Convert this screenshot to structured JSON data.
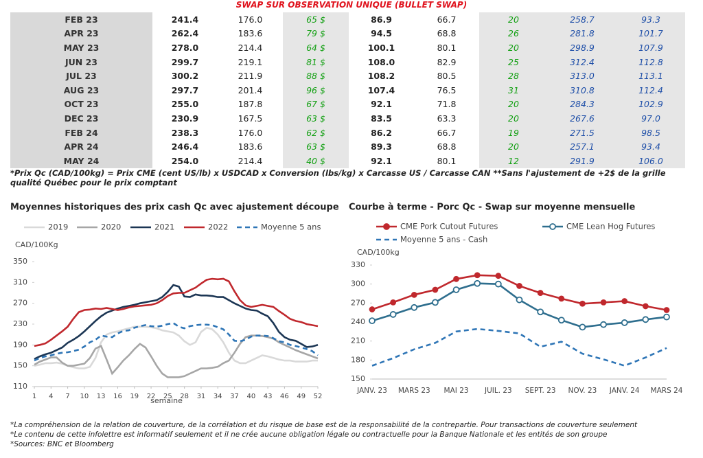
{
  "header": {
    "title": "SWAP SUR OBSERVATION UNIQUE (BULLET SWAP)"
  },
  "table": {
    "rows": [
      [
        "FEB 23",
        "241.4",
        "176.0",
        "65 $",
        "86.9",
        "66.7",
        "20",
        "258.7",
        "93.3"
      ],
      [
        "APR 23",
        "262.4",
        "183.6",
        "79 $",
        "94.5",
        "68.8",
        "26",
        "281.8",
        "101.7"
      ],
      [
        "MAY 23",
        "278.0",
        "214.4",
        "64 $",
        "100.1",
        "80.1",
        "20",
        "298.9",
        "107.9"
      ],
      [
        "JUN 23",
        "299.7",
        "219.1",
        "81 $",
        "108.0",
        "82.9",
        "25",
        "312.4",
        "112.8"
      ],
      [
        "JUL 23",
        "300.2",
        "211.9",
        "88 $",
        "108.2",
        "80.5",
        "28",
        "313.0",
        "113.1"
      ],
      [
        "AUG 23",
        "297.7",
        "201.4",
        "96 $",
        "107.4",
        "76.5",
        "31",
        "310.8",
        "112.4"
      ],
      [
        "OCT 23",
        "255.0",
        "187.8",
        "67 $",
        "92.1",
        "71.8",
        "20",
        "284.3",
        "102.9"
      ],
      [
        "DEC 23",
        "230.9",
        "167.5",
        "63 $",
        "83.5",
        "63.3",
        "20",
        "267.6",
        "97.0"
      ],
      [
        "FEB 24",
        "238.3",
        "176.0",
        "62 $",
        "86.2",
        "66.7",
        "19",
        "271.5",
        "98.5"
      ],
      [
        "APR 24",
        "246.4",
        "183.6",
        "63 $",
        "89.3",
        "68.8",
        "20",
        "257.1",
        "93.4"
      ],
      [
        "MAY 24",
        "254.0",
        "214.4",
        "40 $",
        "92.1",
        "80.1",
        "12",
        "291.9",
        "106.0"
      ]
    ]
  },
  "footnote": "*Prix Qc (CAD/100kg) = Prix CME (cent US/lb) x USDCAD x Conversion (lbs/kg) x Carcasse US / Carcasse CAN **Sans l'ajustement de +2$ de la grille qualité Québec pour le prix comptant",
  "chart_data": [
    {
      "type": "line",
      "title": "Moyennes historiques des prix cash Qc avec ajustement découpe",
      "ylabel": "CAD/100Kg",
      "xlabel": "semaine",
      "x": [
        1,
        2,
        3,
        4,
        5,
        6,
        7,
        8,
        9,
        10,
        11,
        12,
        13,
        14,
        15,
        16,
        17,
        18,
        19,
        20,
        21,
        22,
        23,
        24,
        25,
        26,
        27,
        28,
        29,
        30,
        31,
        32,
        33,
        34,
        35,
        36,
        37,
        38,
        39,
        40,
        41,
        42,
        43,
        44,
        45,
        46,
        47,
        48,
        49,
        50,
        51,
        52
      ],
      "xlim": [
        1,
        52
      ],
      "xticks": [
        1,
        4,
        7,
        10,
        13,
        16,
        19,
        22,
        25,
        28,
        31,
        34,
        37,
        40,
        43,
        46,
        49,
        52
      ],
      "ylim": [
        110,
        350
      ],
      "yticks": [
        110,
        150,
        190,
        230,
        270,
        310,
        350
      ],
      "series": [
        {
          "name": "2019",
          "color": "#d9d9d9",
          "style": "solid",
          "values": [
            150,
            152,
            155,
            155,
            156,
            154,
            150,
            147,
            145,
            145,
            148,
            165,
            195,
            210,
            214,
            216,
            219,
            222,
            225,
            225,
            225,
            224,
            222,
            218,
            216,
            214,
            208,
            197,
            190,
            195,
            215,
            223,
            220,
            210,
            195,
            175,
            160,
            155,
            155,
            160,
            165,
            170,
            168,
            165,
            162,
            160,
            160,
            158,
            158,
            158,
            160,
            160
          ]
        },
        {
          "name": "2020",
          "color": "#a6a6a6",
          "style": "solid",
          "values": [
            152,
            158,
            162,
            166,
            166,
            156,
            150,
            150,
            152,
            154,
            165,
            183,
            188,
            162,
            135,
            147,
            160,
            170,
            182,
            192,
            185,
            168,
            150,
            135,
            128,
            128,
            128,
            130,
            135,
            140,
            145,
            145,
            146,
            148,
            155,
            160,
            175,
            192,
            205,
            208,
            208,
            207,
            205,
            202,
            195,
            190,
            185,
            180,
            176,
            172,
            168,
            164
          ]
        },
        {
          "name": "2021",
          "color": "#1c3654",
          "style": "solid",
          "values": [
            163,
            168,
            172,
            175,
            180,
            185,
            194,
            200,
            207,
            216,
            226,
            236,
            245,
            252,
            256,
            260,
            263,
            265,
            267,
            270,
            272,
            274,
            276,
            282,
            292,
            305,
            302,
            283,
            282,
            287,
            285,
            285,
            284,
            282,
            282,
            276,
            270,
            265,
            260,
            257,
            256,
            250,
            245,
            232,
            215,
            205,
            200,
            198,
            192,
            186,
            187,
            190
          ]
        },
        {
          "name": "2022",
          "color": "#c0282d",
          "style": "solid",
          "values": [
            188,
            190,
            193,
            200,
            208,
            216,
            225,
            240,
            253,
            257,
            258,
            260,
            259,
            261,
            259,
            257,
            259,
            262,
            264,
            265,
            266,
            267,
            270,
            276,
            284,
            289,
            290,
            290,
            295,
            300,
            308,
            315,
            317,
            316,
            317,
            312,
            293,
            276,
            266,
            263,
            265,
            267,
            265,
            263,
            255,
            248,
            240,
            236,
            234,
            230,
            228,
            226
          ]
        },
        {
          "name": "Moyenne 5 ans",
          "color": "#2e75b6",
          "style": "dashed",
          "values": [
            160,
            165,
            168,
            170,
            173,
            175,
            176,
            178,
            181,
            187,
            195,
            200,
            208,
            206,
            205,
            212,
            217,
            218,
            223,
            226,
            228,
            226,
            225,
            227,
            230,
            232,
            225,
            222,
            226,
            228,
            229,
            229,
            228,
            224,
            220,
            210,
            198,
            197,
            200,
            206,
            208,
            208,
            207,
            203,
            197,
            195,
            190,
            188,
            185,
            182,
            178,
            170
          ]
        }
      ]
    },
    {
      "type": "line",
      "title": "Courbe à terme - Porc Qc - Swap sur moyenne mensuelle",
      "ylabel": "CAD/100kg",
      "categories": [
        "JANV. 23",
        null,
        "MARS 23",
        null,
        "MAI 23",
        null,
        "JUIL. 23",
        null,
        "SEPT. 23",
        null,
        "NOV. 23",
        null,
        "JANV. 24",
        null,
        "MARS 24"
      ],
      "ylim": [
        150,
        330
      ],
      "yticks": [
        150,
        180,
        210,
        240,
        270,
        300,
        330
      ],
      "series": [
        {
          "name": "CME Pork Cutout Futures",
          "color": "#c0282d",
          "style": "solid",
          "marker": "filled",
          "values": [
            260,
            271,
            283,
            291,
            308,
            314,
            313,
            297,
            286,
            277,
            269,
            271,
            273,
            265,
            259
          ]
        },
        {
          "name": "CME Lean Hog Futures",
          "color": "#2e6e8e",
          "style": "solid",
          "marker": "open",
          "values": [
            242,
            252,
            263,
            271,
            291,
            301,
            300,
            275,
            256,
            243,
            232,
            236,
            239,
            244,
            248
          ]
        },
        {
          "name": "Moyenne 5 ans - Cash",
          "color": "#2e75b6",
          "style": "dashed",
          "values": [
            171,
            183,
            197,
            207,
            225,
            229,
            226,
            222,
            201,
            209,
            190,
            181,
            171,
            184,
            199
          ]
        }
      ]
    }
  ],
  "notes": [
    "*La compréhension de la relation de couverture, de la corrélation et du risque de base est de la responsabilité de la contrepartie. Pour transactions de couverture seulement",
    "*Le contenu de cette infolettre est informatif seulement et il ne crée aucune obligation légale ou contractuelle pour la Banque Nationale et les entités de son groupe",
    "*Sources: BNC et Bloomberg"
  ]
}
